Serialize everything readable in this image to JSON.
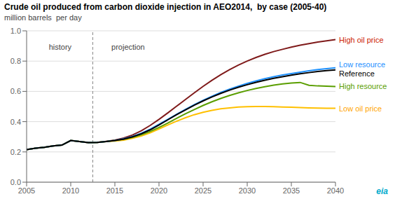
{
  "chart_data": {
    "type": "line",
    "title": "Crude oil produced from carbon dioxide injection in AEO2014,  by case (2005-40)",
    "ylabel": "million barrels  per day",
    "x": [
      2005,
      2006,
      2007,
      2008,
      2009,
      2010,
      2011,
      2012,
      2013,
      2014,
      2015,
      2016,
      2017,
      2018,
      2019,
      2020,
      2021,
      2022,
      2023,
      2024,
      2025,
      2026,
      2027,
      2028,
      2029,
      2030,
      2031,
      2032,
      2033,
      2034,
      2035,
      2036,
      2037,
      2038,
      2039,
      2040
    ],
    "xlim": [
      2005,
      2040
    ],
    "ylim": [
      0.0,
      1.0
    ],
    "xticks": [
      2005,
      2010,
      2015,
      2020,
      2025,
      2030,
      2035,
      2040
    ],
    "yticks": [
      {
        "value": 0.0,
        "label": "0.0"
      },
      0.2,
      0.4,
      0.6,
      0.8,
      {
        "value": 1.0,
        "label": "1.0"
      }
    ],
    "grid": "y",
    "series": [
      {
        "name": "High oil price",
        "color": "#7f1a1a",
        "label_color": "#cc2200",
        "values": [
          0.215,
          0.225,
          0.23,
          0.24,
          0.245,
          0.275,
          0.268,
          0.262,
          0.263,
          0.27,
          0.278,
          0.292,
          0.312,
          0.34,
          0.375,
          0.415,
          0.458,
          0.502,
          0.546,
          0.59,
          0.633,
          0.673,
          0.71,
          0.744,
          0.774,
          0.8,
          0.824,
          0.845,
          0.863,
          0.878,
          0.892,
          0.905,
          0.916,
          0.926,
          0.934,
          0.942
        ]
      },
      {
        "name": "Low oil price",
        "color": "#ffc000",
        "label_color": "#ffa500",
        "values": [
          0.215,
          0.225,
          0.23,
          0.24,
          0.245,
          0.275,
          0.268,
          0.262,
          0.263,
          0.268,
          0.272,
          0.278,
          0.29,
          0.305,
          0.326,
          0.352,
          0.378,
          0.403,
          0.426,
          0.446,
          0.462,
          0.475,
          0.485,
          0.491,
          0.496,
          0.499,
          0.5,
          0.5,
          0.499,
          0.497,
          0.495,
          0.493,
          0.491,
          0.49,
          0.489,
          0.488
        ]
      },
      {
        "name": "High resource",
        "color": "#5a9e00",
        "label_color": "#5a9e00",
        "values": [
          0.215,
          0.225,
          0.23,
          0.24,
          0.245,
          0.275,
          0.268,
          0.262,
          0.263,
          0.268,
          0.275,
          0.283,
          0.296,
          0.313,
          0.335,
          0.362,
          0.391,
          0.422,
          0.452,
          0.48,
          0.507,
          0.531,
          0.553,
          0.573,
          0.59,
          0.606,
          0.619,
          0.631,
          0.641,
          0.649,
          0.655,
          0.659,
          0.64,
          0.636,
          0.634,
          0.632
        ]
      },
      {
        "name": "Low resource",
        "color": "#1e90ff",
        "label_color": "#1e90ff",
        "values": [
          0.215,
          0.225,
          0.23,
          0.24,
          0.245,
          0.275,
          0.268,
          0.262,
          0.263,
          0.268,
          0.276,
          0.287,
          0.302,
          0.323,
          0.35,
          0.382,
          0.415,
          0.449,
          0.481,
          0.512,
          0.541,
          0.568,
          0.593,
          0.615,
          0.635,
          0.653,
          0.669,
          0.684,
          0.697,
          0.708,
          0.718,
          0.727,
          0.736,
          0.744,
          0.75,
          0.756
        ]
      },
      {
        "name": "Reference",
        "color": "#000000",
        "label_color": "#000000",
        "values": [
          0.215,
          0.225,
          0.23,
          0.24,
          0.245,
          0.275,
          0.268,
          0.262,
          0.263,
          0.268,
          0.275,
          0.285,
          0.3,
          0.32,
          0.346,
          0.378,
          0.412,
          0.446,
          0.478,
          0.509,
          0.537,
          0.563,
          0.587,
          0.608,
          0.627,
          0.644,
          0.66,
          0.674,
          0.686,
          0.697,
          0.707,
          0.716,
          0.724,
          0.731,
          0.737,
          0.742
        ]
      }
    ],
    "vertical_line": {
      "x": 2012.5,
      "line_style": "dashed",
      "color": "#888888"
    },
    "annotations": [
      {
        "text": "history",
        "x": 2008.8,
        "y": 0.91
      },
      {
        "text": "projection",
        "x": 2016.5,
        "y": 0.91
      },
      {
        "text": "eia",
        "color": "#00aacc"
      }
    ]
  }
}
